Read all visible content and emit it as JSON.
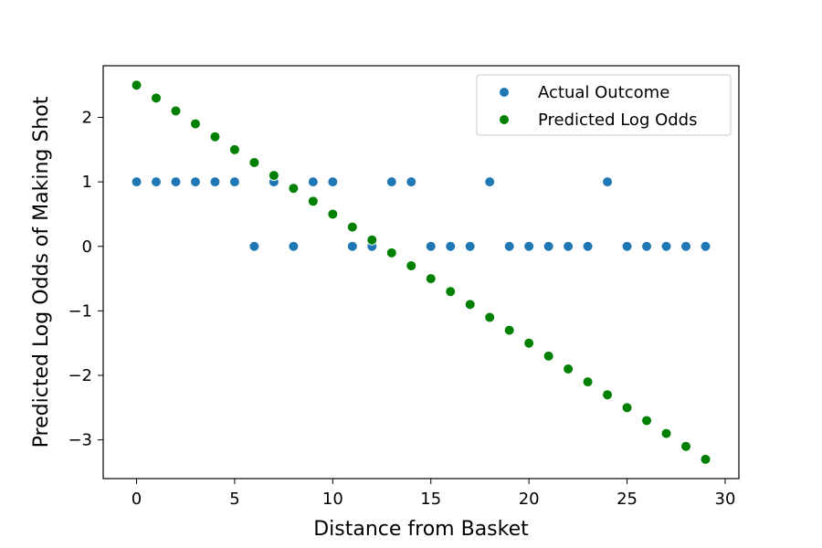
{
  "chart_data": {
    "type": "scatter",
    "title": "",
    "xlabel": "Distance from Basket",
    "ylabel": "Predicted Log Odds of Making Shot",
    "xlim": [
      -1.7,
      30.7
    ],
    "ylim": [
      -3.6,
      2.8
    ],
    "xticks": [
      0,
      5,
      10,
      15,
      20,
      25,
      30
    ],
    "yticks": [
      -3,
      -2,
      -1,
      0,
      1,
      2
    ],
    "ytick_labels": [
      "−3",
      "−2",
      "−1",
      "0",
      "1",
      "2"
    ],
    "grid": false,
    "legend_position": "top-right",
    "series": [
      {
        "name": "Actual Outcome",
        "color": "#1f77b4",
        "x": [
          0,
          1,
          2,
          3,
          4,
          5,
          6,
          7,
          8,
          9,
          10,
          11,
          12,
          13,
          14,
          15,
          16,
          17,
          18,
          19,
          20,
          21,
          22,
          23,
          24,
          25,
          26,
          27,
          28,
          29
        ],
        "y": [
          1,
          1,
          1,
          1,
          1,
          1,
          0,
          1,
          0,
          1,
          1,
          0,
          0,
          1,
          1,
          0,
          0,
          0,
          1,
          0,
          0,
          0,
          0,
          0,
          1,
          0,
          0,
          0,
          0,
          0
        ]
      },
      {
        "name": "Predicted Log Odds",
        "color": "#008000",
        "x": [
          0,
          1,
          2,
          3,
          4,
          5,
          6,
          7,
          8,
          9,
          10,
          11,
          12,
          13,
          14,
          15,
          16,
          17,
          18,
          19,
          20,
          21,
          22,
          23,
          24,
          25,
          26,
          27,
          28,
          29
        ],
        "y": [
          2.5,
          2.3,
          2.1,
          1.9,
          1.7,
          1.5,
          1.3,
          1.1,
          0.9,
          0.7,
          0.5,
          0.3,
          0.1,
          -0.1,
          -0.3,
          -0.5,
          -0.7,
          -0.9,
          -1.1,
          -1.3,
          -1.5,
          -1.7,
          -1.9,
          -2.1,
          -2.3,
          -2.5,
          -2.7,
          -2.9,
          -3.1,
          -3.3
        ]
      }
    ]
  }
}
